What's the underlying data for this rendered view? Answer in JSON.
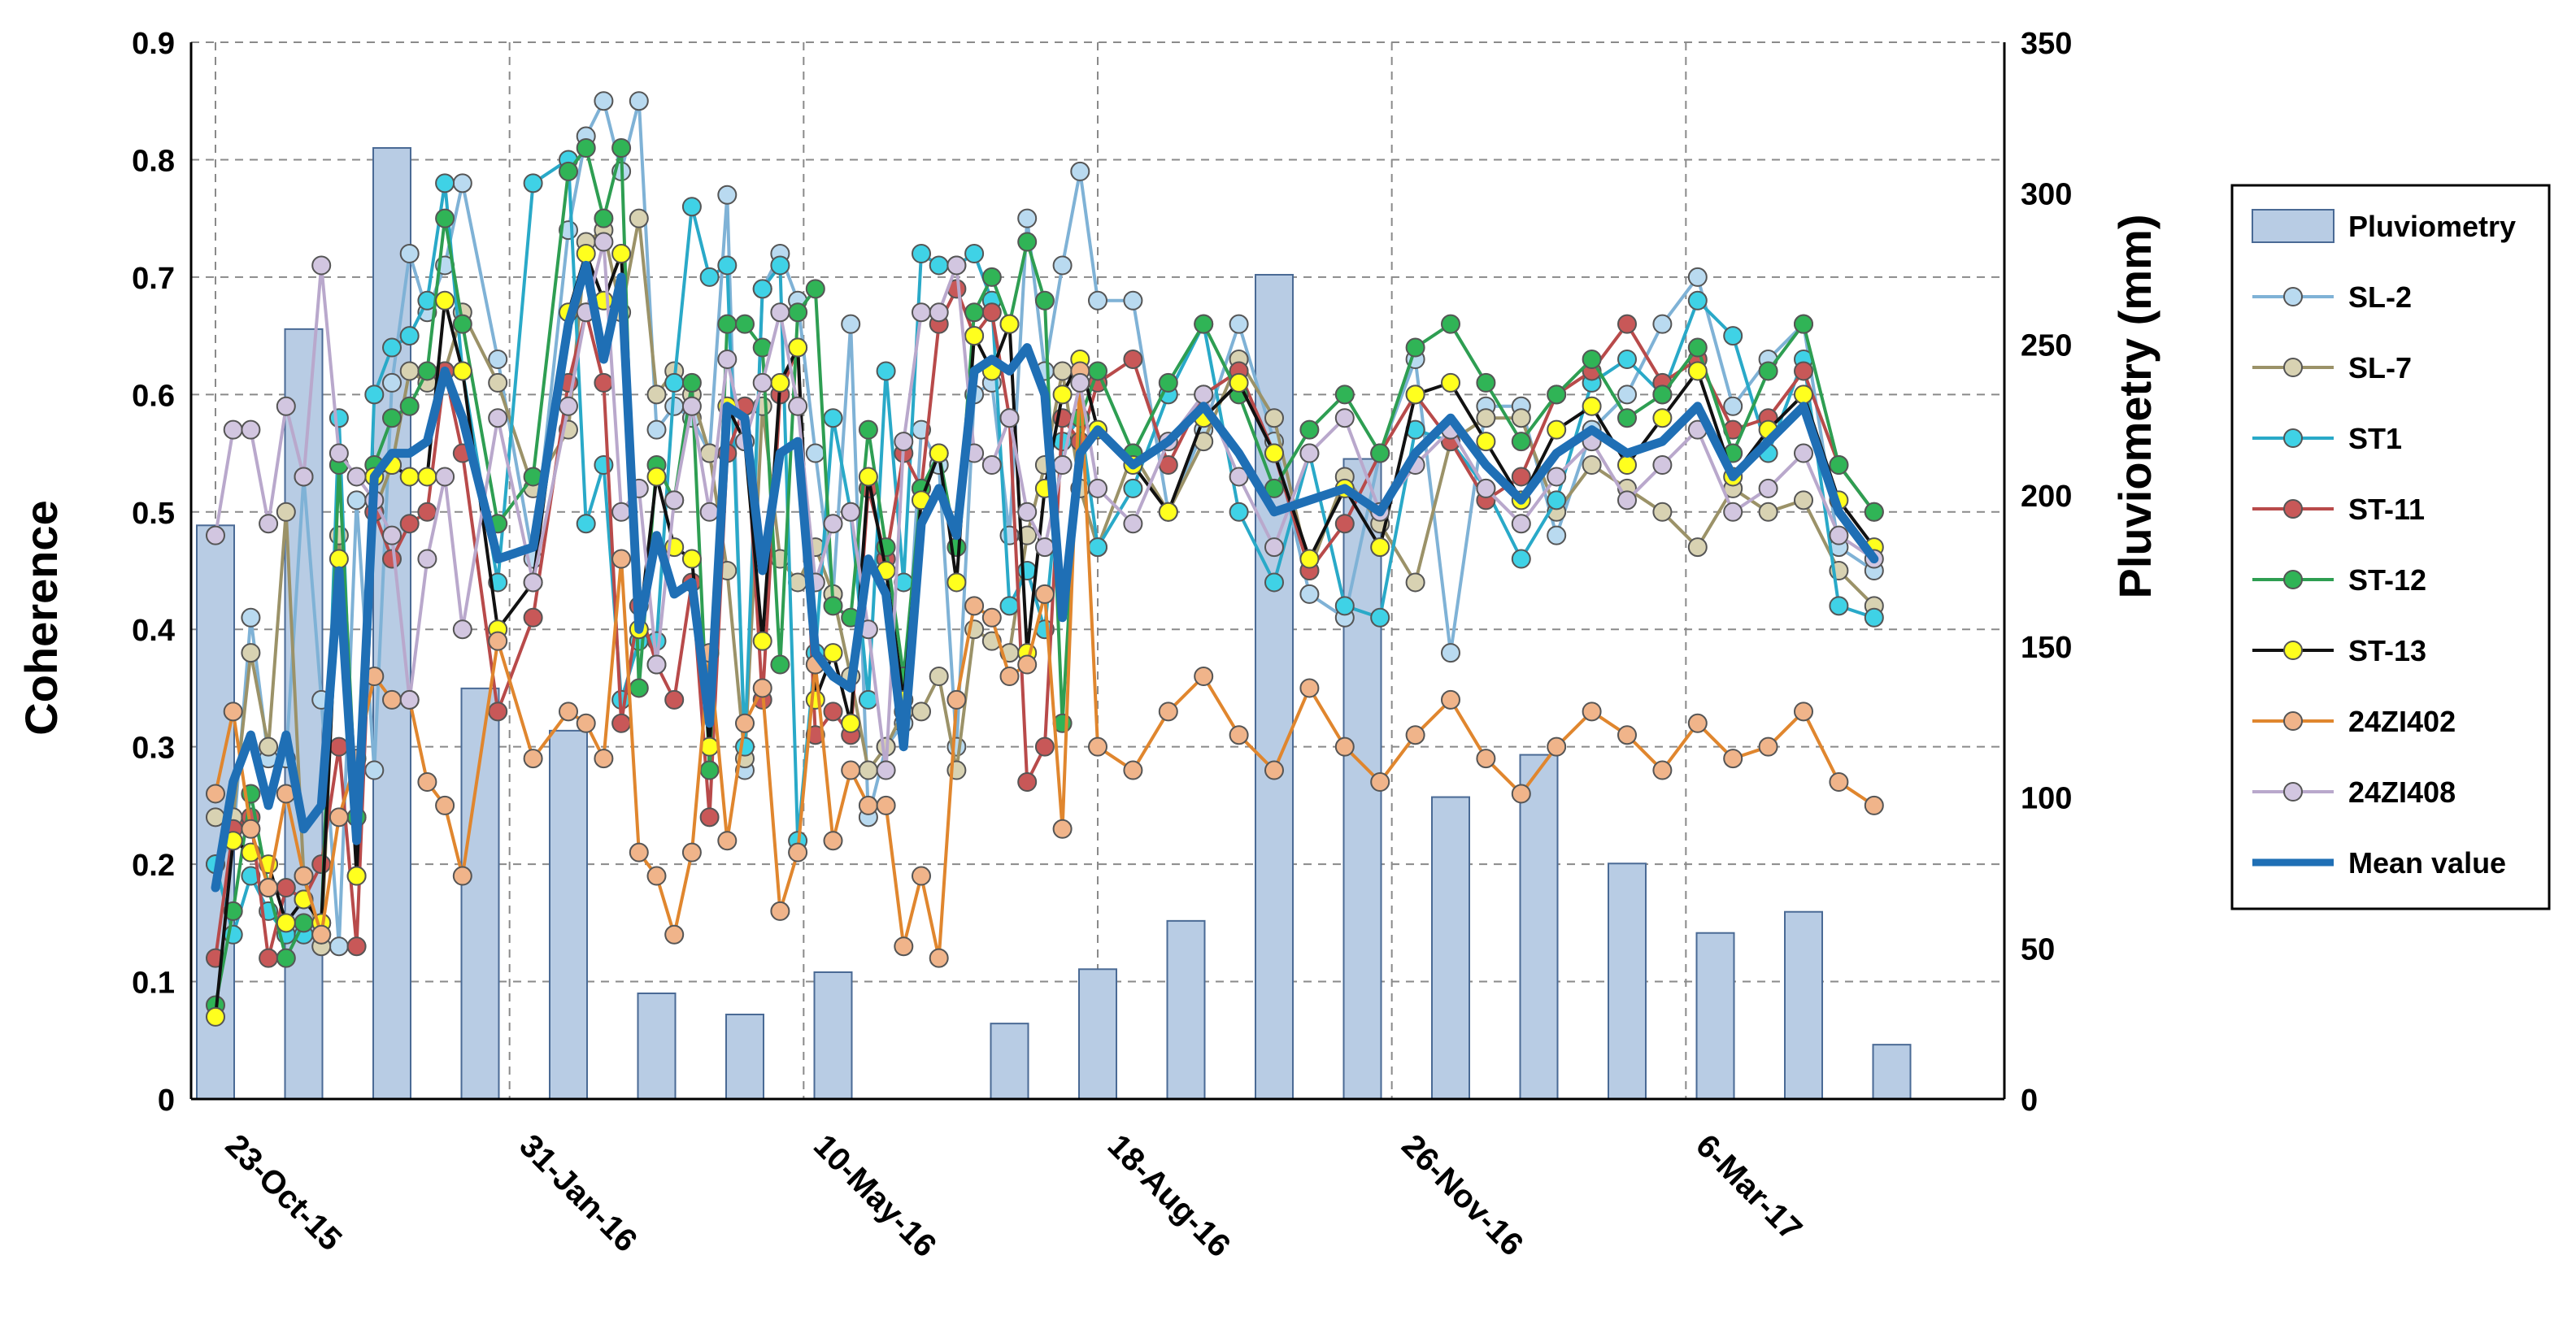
{
  "chart_data": {
    "type": "combo",
    "title": "",
    "ylabel": "Coherence",
    "y2label": "Pluviometry (mm)",
    "ylim": [
      0,
      0.9
    ],
    "y2lim": [
      0,
      350
    ],
    "yticks": [
      "0",
      "0.1",
      "0.2",
      "0.3",
      "0.4",
      "0.5",
      "0.6",
      "0.7",
      "0.8",
      "0.9"
    ],
    "y2ticks": [
      "0",
      "50",
      "100",
      "150",
      "200",
      "250",
      "300",
      "350"
    ],
    "xticks": [
      {
        "label": "23-Oct-15",
        "day": 0
      },
      {
        "label": "31-Jan-16",
        "day": 100
      },
      {
        "label": "10-May-16",
        "day": 200
      },
      {
        "label": "18-Aug-16",
        "day": 300
      },
      {
        "label": "26-Nov-16",
        "day": 400
      },
      {
        "label": "6-Mar-17",
        "day": 500
      }
    ],
    "xlim": [
      0,
      600
    ],
    "dates_day": [
      0,
      6,
      12,
      18,
      24,
      30,
      36,
      42,
      48,
      54,
      60,
      66,
      72,
      78,
      84,
      96,
      108,
      120,
      126,
      132,
      138,
      144,
      150,
      156,
      162,
      168,
      174,
      180,
      186,
      192,
      198,
      204,
      210,
      216,
      222,
      228,
      234,
      240,
      246,
      252,
      258,
      264,
      270,
      276,
      282,
      288,
      294,
      300,
      312,
      324,
      336,
      348,
      360,
      372,
      384,
      396,
      408,
      420,
      432,
      444,
      456,
      468,
      480,
      492,
      504,
      516,
      528,
      540,
      552,
      564
    ],
    "pluviometry": {
      "name": "Pluviometry",
      "color": "#b8cce4",
      "bars": [
        {
          "day": 0,
          "value": 190
        },
        {
          "day": 30,
          "value": 255
        },
        {
          "day": 60,
          "value": 315
        },
        {
          "day": 90,
          "value": 136
        },
        {
          "day": 120,
          "value": 122
        },
        {
          "day": 150,
          "value": 35
        },
        {
          "day": 180,
          "value": 28
        },
        {
          "day": 210,
          "value": 42
        },
        {
          "day": 270,
          "value": 25
        },
        {
          "day": 300,
          "value": 43
        },
        {
          "day": 330,
          "value": 59
        },
        {
          "day": 360,
          "value": 273
        },
        {
          "day": 390,
          "value": 212
        },
        {
          "day": 420,
          "value": 100
        },
        {
          "day": 450,
          "value": 114
        },
        {
          "day": 480,
          "value": 78
        },
        {
          "day": 510,
          "value": 55
        },
        {
          "day": 540,
          "value": 62
        },
        {
          "day": 570,
          "value": 18
        }
      ]
    },
    "series": [
      {
        "name": "SL-2",
        "color": "#7fb2d6",
        "marker_fill": "#b9daf0",
        "values": [
          0.2,
          0.22,
          0.41,
          0.29,
          0.29,
          0.53,
          0.34,
          0.13,
          0.51,
          0.28,
          0.61,
          0.72,
          0.67,
          0.71,
          0.78,
          0.63,
          0.46,
          0.74,
          0.82,
          0.85,
          0.79,
          0.85,
          0.57,
          0.59,
          0.58,
          0.55,
          0.77,
          0.28,
          0.69,
          0.72,
          0.68,
          0.55,
          0.43,
          0.66,
          0.24,
          0.3,
          0.32,
          0.57,
          0.54,
          0.3,
          0.6,
          0.61,
          0.48,
          0.75,
          0.62,
          0.71,
          0.79,
          0.68,
          0.68,
          0.5,
          0.57,
          0.66,
          0.56,
          0.43,
          0.41,
          0.55,
          0.63,
          0.38,
          0.59,
          0.59,
          0.48,
          0.57,
          0.6,
          0.66,
          0.7,
          0.59,
          0.63,
          0.66,
          0.47,
          0.45
        ]
      },
      {
        "name": "SL-7",
        "color": "#9b9268",
        "marker_fill": "#d8d2b2",
        "values": [
          0.24,
          0.24,
          0.38,
          0.3,
          0.5,
          0.19,
          0.13,
          0.48,
          0.24,
          0.5,
          0.54,
          0.62,
          0.61,
          0.62,
          0.67,
          0.61,
          0.52,
          0.57,
          0.73,
          0.74,
          0.67,
          0.75,
          0.6,
          0.62,
          0.6,
          0.55,
          0.45,
          0.29,
          0.59,
          0.46,
          0.44,
          0.47,
          0.43,
          0.36,
          0.28,
          0.3,
          0.33,
          0.33,
          0.36,
          0.28,
          0.4,
          0.39,
          0.38,
          0.48,
          0.54,
          0.62,
          0.52,
          0.47,
          0.55,
          0.5,
          0.56,
          0.63,
          0.58,
          0.45,
          0.53,
          0.49,
          0.44,
          0.56,
          0.58,
          0.58,
          0.5,
          0.54,
          0.52,
          0.5,
          0.47,
          0.52,
          0.5,
          0.51,
          0.45,
          0.42
        ]
      },
      {
        "name": "ST1",
        "color": "#29a9c8",
        "marker_fill": "#3fd2e6",
        "values": [
          0.2,
          0.14,
          0.19,
          0.16,
          0.14,
          0.14,
          0.14,
          0.58,
          0.19,
          0.6,
          0.64,
          0.65,
          0.68,
          0.78,
          0.62,
          0.44,
          0.78,
          0.8,
          0.49,
          0.54,
          0.34,
          0.39,
          0.39,
          0.61,
          0.76,
          0.7,
          0.71,
          0.3,
          0.69,
          0.71,
          0.22,
          0.38,
          0.58,
          0.5,
          0.34,
          0.62,
          0.44,
          0.72,
          0.71,
          0.71,
          0.72,
          0.68,
          0.42,
          0.45,
          0.4,
          0.56,
          0.58,
          0.47,
          0.52,
          0.6,
          0.66,
          0.5,
          0.44,
          0.55,
          0.42,
          0.41,
          0.57,
          0.56,
          0.52,
          0.46,
          0.51,
          0.61,
          0.63,
          0.6,
          0.68,
          0.65,
          0.55,
          0.63,
          0.42,
          0.41
        ]
      },
      {
        "name": "ST-11",
        "color": "#b84a4a",
        "marker_fill": "#c85858",
        "values": [
          0.12,
          0.23,
          0.24,
          0.12,
          0.18,
          0.17,
          0.2,
          0.3,
          0.13,
          0.5,
          0.46,
          0.49,
          0.5,
          0.62,
          0.55,
          0.33,
          0.41,
          0.61,
          0.67,
          0.61,
          0.32,
          0.42,
          0.37,
          0.34,
          0.44,
          0.24,
          0.55,
          0.59,
          0.34,
          0.6,
          0.64,
          0.31,
          0.33,
          0.31,
          0.52,
          0.46,
          0.55,
          0.52,
          0.66,
          0.69,
          0.65,
          0.67,
          0.58,
          0.27,
          0.3,
          0.58,
          0.56,
          0.61,
          0.63,
          0.54,
          0.6,
          0.62,
          0.55,
          0.45,
          0.49,
          0.55,
          0.6,
          0.56,
          0.51,
          0.53,
          0.6,
          0.62,
          0.66,
          0.61,
          0.63,
          0.57,
          0.58,
          0.62,
          0.54,
          0.5
        ]
      },
      {
        "name": "ST-12",
        "color": "#2e9e52",
        "marker_fill": "#30b456",
        "values": [
          0.08,
          0.16,
          0.26,
          0.18,
          0.12,
          0.15,
          0.15,
          0.54,
          0.24,
          0.54,
          0.58,
          0.59,
          0.62,
          0.75,
          0.66,
          0.49,
          0.53,
          0.79,
          0.81,
          0.75,
          0.81,
          0.35,
          0.54,
          0.51,
          0.61,
          0.28,
          0.66,
          0.66,
          0.64,
          0.37,
          0.67,
          0.69,
          0.42,
          0.41,
          0.57,
          0.47,
          0.36,
          0.52,
          0.55,
          0.47,
          0.67,
          0.7,
          0.66,
          0.73,
          0.68,
          0.32,
          0.58,
          0.62,
          0.55,
          0.61,
          0.66,
          0.6,
          0.52,
          0.57,
          0.6,
          0.55,
          0.64,
          0.66,
          0.61,
          0.56,
          0.6,
          0.63,
          0.58,
          0.6,
          0.64,
          0.55,
          0.62,
          0.66,
          0.54,
          0.5
        ]
      },
      {
        "name": "ST-13",
        "color": "#111111",
        "marker_fill": "#ffff1e",
        "values": [
          0.07,
          0.22,
          0.21,
          0.2,
          0.15,
          0.17,
          0.15,
          0.46,
          0.19,
          0.53,
          0.54,
          0.53,
          0.53,
          0.68,
          0.62,
          0.4,
          0.44,
          0.67,
          0.72,
          0.68,
          0.72,
          0.4,
          0.53,
          0.47,
          0.46,
          0.3,
          0.59,
          0.56,
          0.39,
          0.61,
          0.64,
          0.34,
          0.38,
          0.32,
          0.53,
          0.45,
          0.34,
          0.51,
          0.55,
          0.44,
          0.65,
          0.62,
          0.66,
          0.38,
          0.52,
          0.6,
          0.63,
          0.57,
          0.54,
          0.5,
          0.58,
          0.61,
          0.55,
          0.46,
          0.52,
          0.47,
          0.6,
          0.61,
          0.56,
          0.51,
          0.57,
          0.59,
          0.54,
          0.58,
          0.62,
          0.53,
          0.57,
          0.6,
          0.51,
          0.47
        ]
      },
      {
        "name": "24ZI402",
        "color": "#e0862e",
        "marker_fill": "#f0b48a",
        "values": [
          0.26,
          0.33,
          0.23,
          0.18,
          0.26,
          0.19,
          0.14,
          0.24,
          0.29,
          0.36,
          0.34,
          0.34,
          0.27,
          0.25,
          0.19,
          0.39,
          0.29,
          0.33,
          0.32,
          0.29,
          0.46,
          0.21,
          0.19,
          0.14,
          0.21,
          0.38,
          0.22,
          0.32,
          0.35,
          0.16,
          0.21,
          0.37,
          0.22,
          0.28,
          0.25,
          0.25,
          0.13,
          0.19,
          0.12,
          0.34,
          0.42,
          0.41,
          0.36,
          0.37,
          0.43,
          0.23,
          0.62,
          0.3,
          0.28,
          0.33,
          0.36,
          0.31,
          0.28,
          0.35,
          0.3,
          0.27,
          0.31,
          0.34,
          0.29,
          0.26,
          0.3,
          0.33,
          0.31,
          0.28,
          0.32,
          0.29,
          0.3,
          0.33,
          0.27,
          0.25
        ]
      },
      {
        "name": "24ZI408",
        "color": "#b9a8cc",
        "marker_fill": "#d2c6e0",
        "values": [
          0.48,
          0.57,
          0.57,
          0.49,
          0.59,
          0.53,
          0.71,
          0.55,
          0.53,
          0.51,
          0.48,
          0.34,
          0.46,
          0.53,
          0.4,
          0.58,
          0.44,
          0.59,
          0.67,
          0.73,
          0.5,
          0.52,
          0.37,
          0.51,
          0.59,
          0.5,
          0.63,
          0.56,
          0.61,
          0.67,
          0.59,
          0.44,
          0.49,
          0.5,
          0.4,
          0.28,
          0.56,
          0.67,
          0.67,
          0.71,
          0.55,
          0.54,
          0.58,
          0.5,
          0.47,
          0.54,
          0.61,
          0.52,
          0.49,
          0.56,
          0.6,
          0.53,
          0.47,
          0.55,
          0.58,
          0.5,
          0.54,
          0.57,
          0.52,
          0.49,
          0.53,
          0.56,
          0.51,
          0.54,
          0.57,
          0.5,
          0.52,
          0.55,
          0.48,
          0.46
        ]
      },
      {
        "name": "Mean value",
        "color": "#1f6fb5",
        "marker_fill": "",
        "values": [
          0.18,
          0.27,
          0.31,
          0.25,
          0.31,
          0.23,
          0.25,
          0.45,
          0.22,
          0.53,
          0.55,
          0.55,
          0.56,
          0.62,
          0.58,
          0.46,
          0.47,
          0.66,
          0.71,
          0.63,
          0.7,
          0.4,
          0.48,
          0.43,
          0.44,
          0.32,
          0.59,
          0.58,
          0.45,
          0.55,
          0.56,
          0.38,
          0.36,
          0.35,
          0.46,
          0.43,
          0.3,
          0.49,
          0.52,
          0.48,
          0.62,
          0.63,
          0.62,
          0.64,
          0.6,
          0.41,
          0.55,
          0.57,
          0.54,
          0.56,
          0.59,
          0.55,
          0.5,
          0.51,
          0.52,
          0.5,
          0.55,
          0.58,
          0.54,
          0.51,
          0.55,
          0.57,
          0.55,
          0.56,
          0.59,
          0.53,
          0.56,
          0.59,
          0.5,
          0.46
        ]
      }
    ],
    "legend": {
      "position": "right",
      "entries": [
        "Pluviometry",
        "SL-2",
        "SL-7",
        "ST1",
        "ST-11",
        "ST-12",
        "ST-13",
        "24ZI402",
        "24ZI408",
        "Mean value"
      ]
    }
  }
}
